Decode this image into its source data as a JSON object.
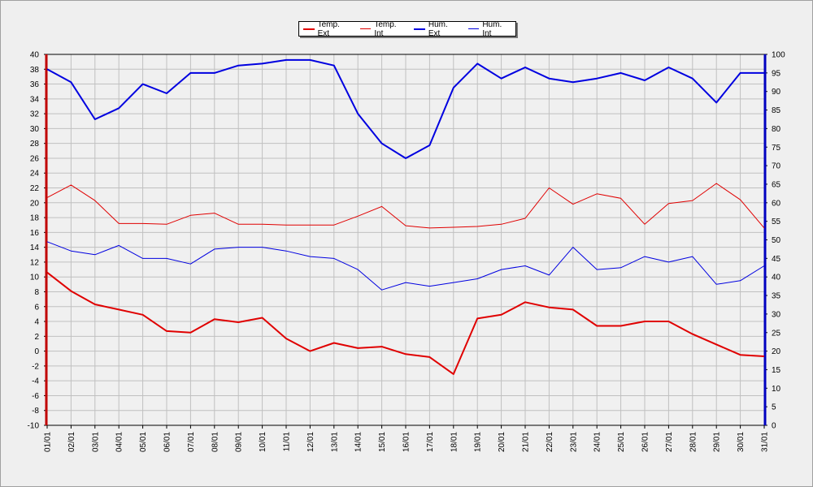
{
  "chart_data": {
    "type": "line",
    "categories": [
      "01/01",
      "02/01",
      "03/01",
      "04/01",
      "05/01",
      "06/01",
      "07/01",
      "08/01",
      "09/01",
      "10/01",
      "11/01",
      "12/01",
      "13/01",
      "14/01",
      "15/01",
      "16/01",
      "17/01",
      "18/01",
      "19/01",
      "20/01",
      "21/01",
      "22/01",
      "23/01",
      "24/01",
      "25/01",
      "26/01",
      "27/01",
      "28/01",
      "29/01",
      "30/01",
      "31/01"
    ],
    "y_left": {
      "min": -10,
      "max": 40,
      "step": 2,
      "color": "#c00000"
    },
    "y_right": {
      "min": 0,
      "max": 100,
      "step": 5,
      "color": "#0000c0"
    },
    "grid": true,
    "legend_position": "top-center",
    "series": [
      {
        "name": "Temp. Ext",
        "axis": "left",
        "color": "#e00000",
        "width": 2,
        "values": [
          10.6,
          8.1,
          6.3,
          5.6,
          4.9,
          2.7,
          2.5,
          4.3,
          3.9,
          4.5,
          1.7,
          0.0,
          1.1,
          0.4,
          0.6,
          -0.4,
          -0.8,
          -3.1,
          4.4,
          4.9,
          6.6,
          5.9,
          5.6,
          3.4,
          3.4,
          4.0,
          4.0,
          2.3,
          0.9,
          -0.5,
          -0.7
        ]
      },
      {
        "name": "Temp. Int",
        "axis": "left",
        "color": "#e00000",
        "width": 1,
        "values": [
          20.7,
          22.4,
          20.3,
          17.2,
          17.2,
          17.1,
          18.3,
          18.6,
          17.1,
          17.1,
          17.0,
          17.0,
          17.0,
          18.2,
          19.5,
          16.9,
          16.6,
          16.7,
          16.8,
          17.1,
          17.9,
          22.0,
          19.8,
          21.2,
          20.6,
          17.1,
          19.9,
          20.3,
          22.6,
          20.4,
          16.6
        ]
      },
      {
        "name": "Hum. Ext",
        "axis": "right",
        "color": "#0000e0",
        "width": 2,
        "values": [
          96,
          92.5,
          82.5,
          85.5,
          92,
          89.5,
          95,
          95,
          97,
          97.5,
          98.5,
          98.5,
          97,
          84,
          76,
          72,
          75.5,
          91,
          97.5,
          93.5,
          96.5,
          93.5,
          92.5,
          93.5,
          95,
          93,
          96.5,
          93.5,
          87,
          95,
          95
        ]
      },
      {
        "name": "Hum. Int",
        "axis": "right",
        "color": "#0000e0",
        "width": 1,
        "values": [
          49.5,
          47,
          46,
          48.5,
          45,
          45,
          43.5,
          47.5,
          48,
          48,
          47,
          45.5,
          45,
          42,
          36.5,
          38.5,
          37.5,
          38.5,
          39.5,
          42,
          43,
          40.5,
          48,
          42,
          42.5,
          45.5,
          44,
          45.5,
          38,
          39,
          43
        ]
      }
    ]
  }
}
